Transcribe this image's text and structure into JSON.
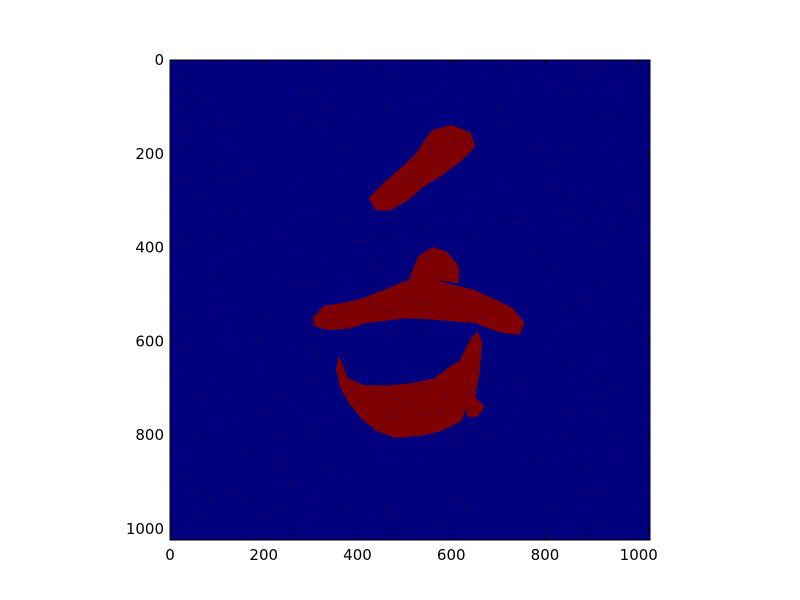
{
  "chart_data": {
    "type": "heatmap",
    "title": "",
    "xlabel": "",
    "ylabel": "",
    "xlim": [
      0,
      1024
    ],
    "ylim": [
      1024,
      0
    ],
    "y_inverted": true,
    "x_ticks": [
      0,
      200,
      400,
      600,
      800,
      1000
    ],
    "y_ticks": [
      0,
      200,
      400,
      600,
      800,
      1000
    ],
    "x_tick_labels": [
      "0",
      "200",
      "400",
      "600",
      "800",
      "1000"
    ],
    "y_tick_labels": [
      "0",
      "200",
      "400",
      "600",
      "800",
      "1000"
    ],
    "grid": false,
    "legend": "none",
    "colormap": {
      "background": "#00007f",
      "foreground": "#7f0000"
    },
    "regions": [
      {
        "name": "upper blob",
        "polygon": [
          [
            560,
            150
          ],
          [
            600,
            140
          ],
          [
            640,
            155
          ],
          [
            650,
            185
          ],
          [
            620,
            215
          ],
          [
            580,
            245
          ],
          [
            540,
            270
          ],
          [
            505,
            300
          ],
          [
            470,
            320
          ],
          [
            440,
            320
          ],
          [
            425,
            295
          ],
          [
            460,
            260
          ],
          [
            500,
            225
          ],
          [
            530,
            195
          ],
          [
            545,
            170
          ]
        ]
      },
      {
        "name": "middle band",
        "polygon": [
          [
            305,
            550
          ],
          [
            330,
            525
          ],
          [
            365,
            520
          ],
          [
            410,
            510
          ],
          [
            460,
            490
          ],
          [
            495,
            475
          ],
          [
            530,
            465
          ],
          [
            565,
            470
          ],
          [
            600,
            480
          ],
          [
            645,
            490
          ],
          [
            690,
            510
          ],
          [
            730,
            530
          ],
          [
            755,
            560
          ],
          [
            745,
            585
          ],
          [
            705,
            580
          ],
          [
            650,
            560
          ],
          [
            590,
            555
          ],
          [
            550,
            552
          ],
          [
            500,
            550
          ],
          [
            460,
            555
          ],
          [
            420,
            560
          ],
          [
            380,
            572
          ],
          [
            340,
            575
          ],
          [
            310,
            568
          ]
        ]
      },
      {
        "name": "middle top spike",
        "polygon": [
          [
            510,
            470
          ],
          [
            530,
            420
          ],
          [
            560,
            400
          ],
          [
            590,
            410
          ],
          [
            615,
            440
          ],
          [
            615,
            475
          ],
          [
            580,
            470
          ],
          [
            545,
            468
          ]
        ]
      },
      {
        "name": "lower band",
        "polygon": [
          [
            360,
            635
          ],
          [
            380,
            680
          ],
          [
            415,
            695
          ],
          [
            470,
            695
          ],
          [
            520,
            690
          ],
          [
            565,
            680
          ],
          [
            605,
            650
          ],
          [
            625,
            640
          ],
          [
            640,
            660
          ],
          [
            640,
            720
          ],
          [
            620,
            770
          ],
          [
            580,
            790
          ],
          [
            540,
            800
          ],
          [
            480,
            805
          ],
          [
            440,
            790
          ],
          [
            410,
            765
          ],
          [
            385,
            735
          ],
          [
            365,
            700
          ],
          [
            355,
            660
          ]
        ]
      },
      {
        "name": "lower right tail",
        "polygon": [
          [
            620,
            640
          ],
          [
            640,
            600
          ],
          [
            655,
            580
          ],
          [
            665,
            600
          ],
          [
            660,
            660
          ],
          [
            650,
            720
          ],
          [
            670,
            740
          ],
          [
            655,
            760
          ],
          [
            635,
            760
          ],
          [
            630,
            720
          ]
        ]
      }
    ]
  }
}
